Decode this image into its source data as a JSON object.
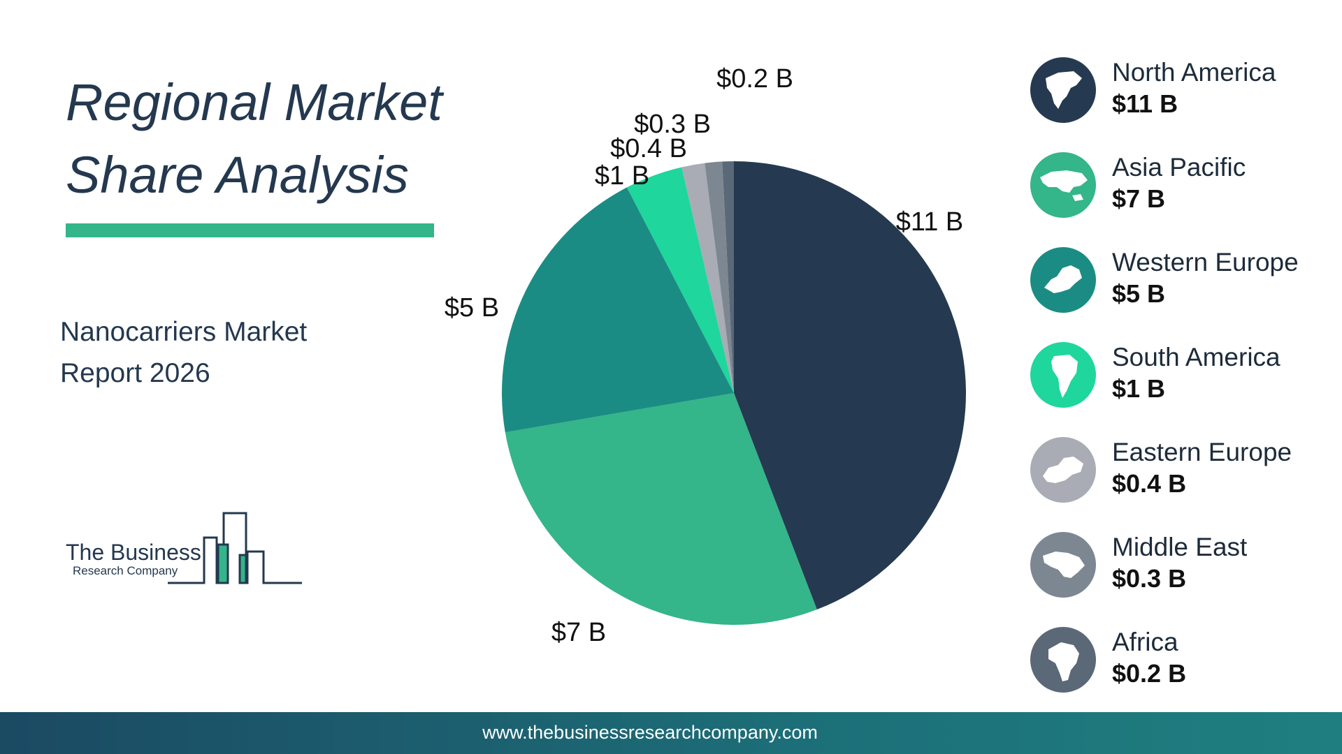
{
  "header": {
    "title": "Regional Market Share Analysis",
    "subtitle": "Nanocarriers Market Report 2026"
  },
  "logo": {
    "line1": "The Business",
    "line2": "Research Company"
  },
  "footer": {
    "url": "www.thebusinessresearchcompany.com"
  },
  "colors": {
    "navy": "#253a50",
    "green": "#34b58a",
    "teal": "#1b8c84",
    "mint": "#1fd69d",
    "gray": "#a9acb4",
    "slate": "#7c8792",
    "dark_slate": "#5a6877"
  },
  "chart_data": {
    "type": "pie",
    "title": "",
    "unit": "$ B",
    "slices": [
      {
        "name": "North America",
        "value": 11,
        "label": "$11 B",
        "color": "#253a50",
        "icon": "north-america-map-icon"
      },
      {
        "name": "Asia Pacific",
        "value": 7,
        "label": "$7 B",
        "color": "#34b58a",
        "icon": "asia-pacific-map-icon"
      },
      {
        "name": "Western Europe",
        "value": 5,
        "label": "$5 B",
        "color": "#1b8c84",
        "icon": "western-europe-map-icon"
      },
      {
        "name": "South America",
        "value": 1,
        "label": "$1 B",
        "color": "#1fd69d",
        "icon": "south-america-map-icon"
      },
      {
        "name": "Eastern Europe",
        "value": 0.4,
        "label": "$0.4 B",
        "color": "#a9acb4",
        "icon": "eastern-europe-map-icon"
      },
      {
        "name": "Middle East",
        "value": 0.3,
        "label": "$0.3 B",
        "color": "#7c8792",
        "icon": "middle-east-map-icon"
      },
      {
        "name": "Africa",
        "value": 0.2,
        "label": "$0.2 B",
        "color": "#5a6877",
        "icon": "africa-map-icon"
      }
    ],
    "legend_position": "right"
  }
}
